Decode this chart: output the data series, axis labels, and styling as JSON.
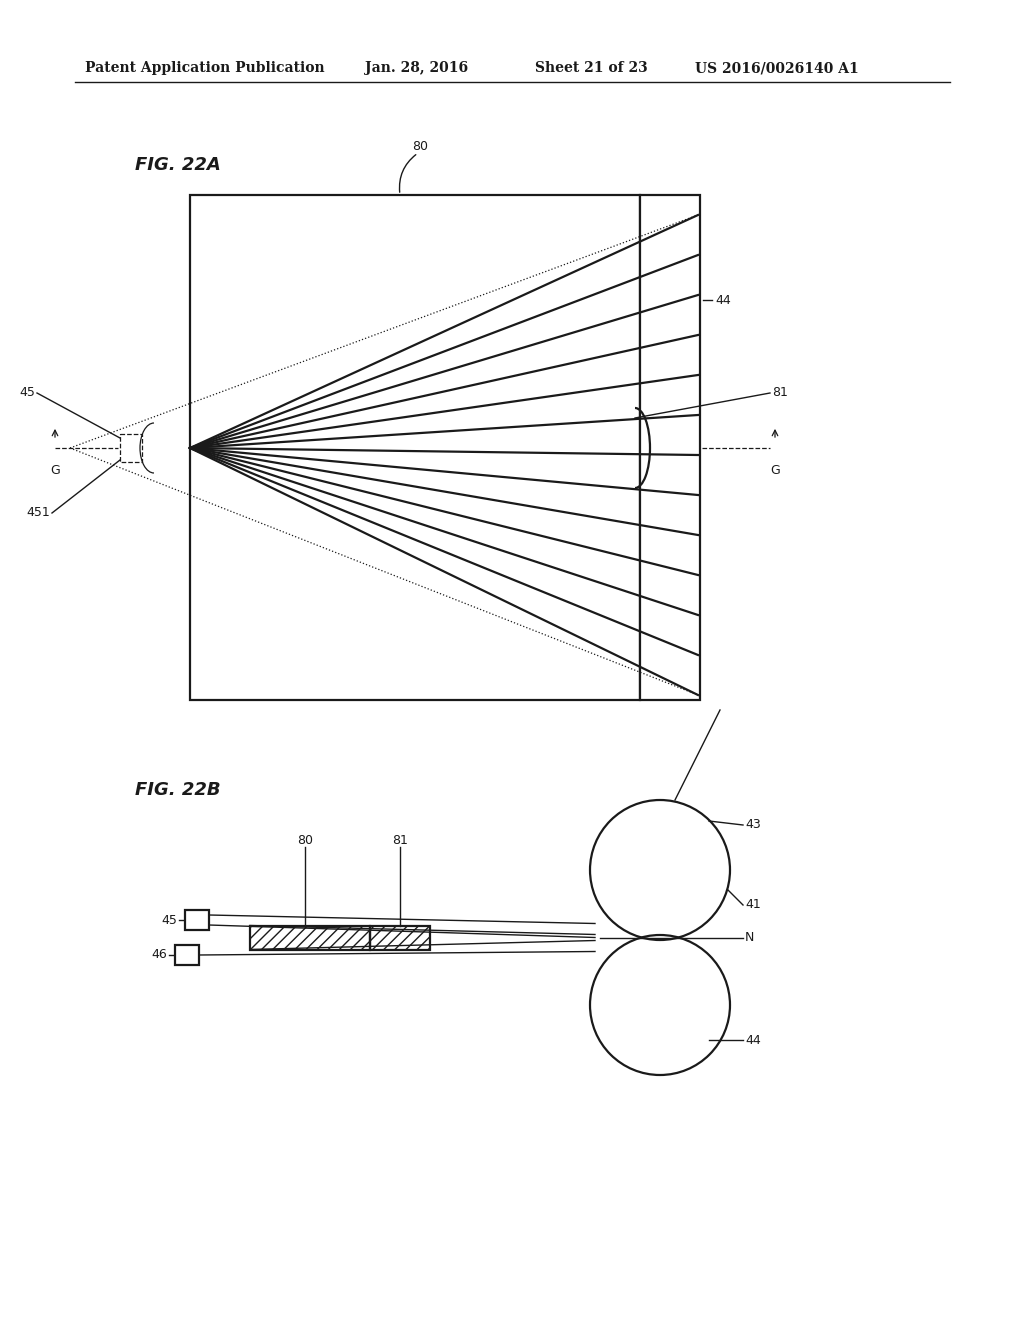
{
  "background_color": "#ffffff",
  "header_text": "Patent Application Publication",
  "header_date": "Jan. 28, 2016",
  "header_sheet": "Sheet 21 of 23",
  "header_patent": "US 2016/0026140 A1",
  "fig22a_label": "FIG. 22A",
  "fig22b_label": "FIG. 22B",
  "color": "#1a1a1a",
  "lw_main": 1.6,
  "lw_thin": 1.0,
  "font_size_label": 9,
  "font_size_fig": 13
}
